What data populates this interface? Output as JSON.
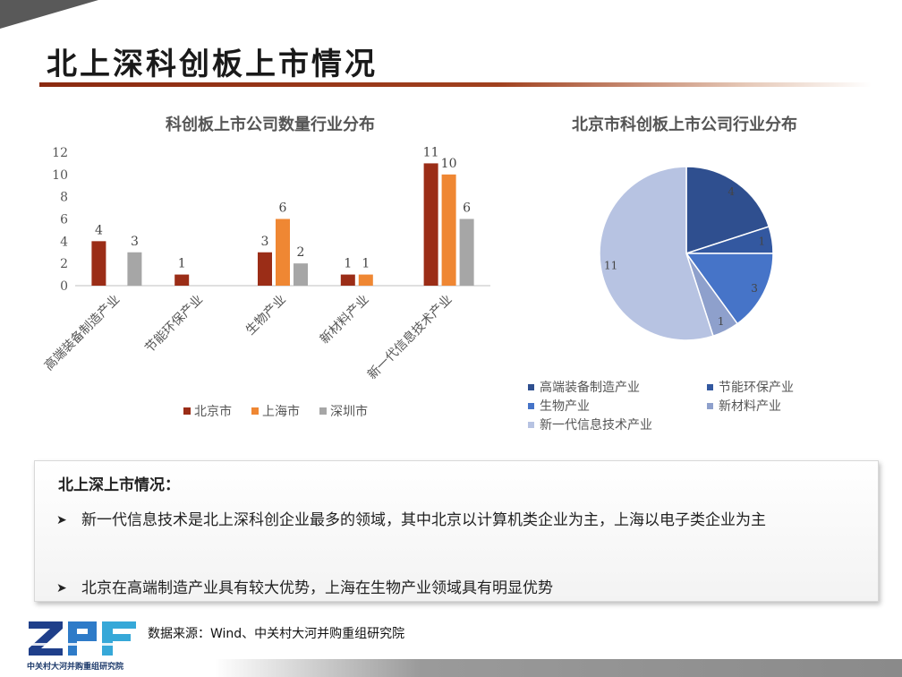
{
  "page": {
    "title": "北上深科创板上市情况",
    "source": "数据来源：Wind、中关村大河并购重组研究院",
    "logo_text": "ZPF",
    "logo_caption": "中关村大河并购重组研究院"
  },
  "summary": {
    "title": "北上深上市情况：",
    "bullets": [
      "新一代信息技术是北上深科创企业最多的领域，其中北京以计算机类企业为主，上海以电子类企业为主",
      "北京在高端制造产业具有较大优势，上海在生物产业领域具有明显优势"
    ]
  },
  "chart_data": [
    {
      "type": "bar",
      "title": "科创板上市公司数量行业分布",
      "categories": [
        "高端装备制造产业",
        "节能环保产业",
        "生物产业",
        "新材料产业",
        "新一代信息技术产业"
      ],
      "series": [
        {
          "name": "北京市",
          "values": [
            4,
            1,
            3,
            1,
            11
          ],
          "color": "#9b2d17"
        },
        {
          "name": "上海市",
          "values": [
            0,
            0,
            6,
            1,
            10
          ],
          "color": "#ef8733"
        },
        {
          "name": "深圳市",
          "values": [
            3,
            0,
            2,
            0,
            6
          ],
          "color": "#a6a6a6"
        }
      ],
      "yticks": [
        "0",
        "2",
        "4",
        "6",
        "8",
        "10",
        "12"
      ],
      "ylim": [
        0,
        12
      ],
      "legend": "bottom"
    },
    {
      "type": "pie",
      "title": "北京市科创板上市公司行业分布",
      "labels": [
        "高端装备制造产业",
        "节能环保产业",
        "生物产业",
        "新材料产业",
        "新一代信息技术产业"
      ],
      "values": [
        4,
        1,
        3,
        1,
        11
      ],
      "colors": [
        "#2f4f8f",
        "#3358a0",
        "#4674c8",
        "#8ea0cc",
        "#b7c3e2"
      ],
      "legend": "bottom"
    }
  ]
}
